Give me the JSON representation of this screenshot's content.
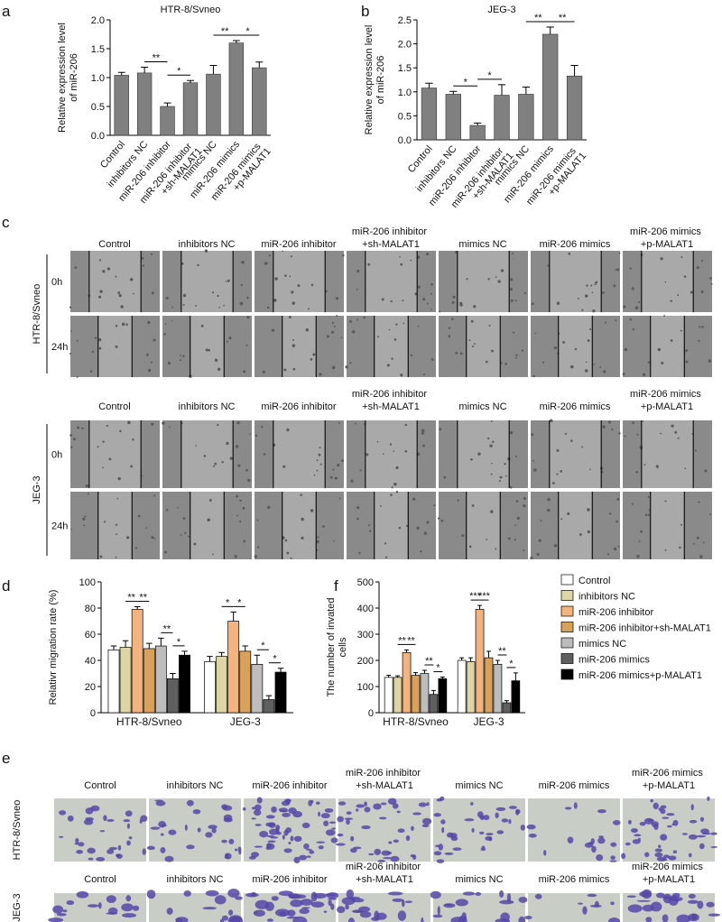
{
  "chart_data": [
    {
      "type": "bar",
      "panel": "a",
      "title": "HTR-8/Svneo",
      "ylabel": [
        "Relative expression level",
        "of miR-206"
      ],
      "categories": [
        "Control",
        "inhibitors NC",
        "miR-206 inhibitor",
        "miR-206 inhibitor +sh-MALAT1",
        "mimics NC",
        "miR-206 mimics",
        "miR-206 mimics +p-MALAT1"
      ],
      "values": [
        1.04,
        1.08,
        0.5,
        0.91,
        1.06,
        1.6,
        1.17
      ],
      "errors": [
        0.05,
        0.1,
        0.06,
        0.04,
        0.15,
        0.04,
        0.1
      ],
      "color": "#808080",
      "ylim": [
        0,
        2.0
      ],
      "yticks": [
        {
          "value": 0,
          "label": "0.0"
        },
        {
          "value": 0.5,
          "label": "0.5"
        },
        {
          "value": 1.0,
          "label": "1.0"
        },
        {
          "value": 1.5,
          "label": "1.5"
        },
        {
          "value": 2.0,
          "label": "2.0"
        }
      ],
      "significance": [
        {
          "categories": [
            "inhibitors NC",
            "miR-206 inhibitor"
          ],
          "label": "**"
        },
        {
          "categories": [
            "miR-206 inhibitor",
            "miR-206 inhibitor +sh-MALAT1"
          ],
          "label": "*"
        },
        {
          "categories": [
            "mimics NC",
            "miR-206 mimics"
          ],
          "label": "**"
        },
        {
          "categories": [
            "miR-206 mimics",
            "miR-206 mimics +p-MALAT1"
          ],
          "label": "*"
        }
      ]
    },
    {
      "type": "bar",
      "panel": "b",
      "title": "JEG-3",
      "ylabel": [
        "Relative expression level",
        "of miR-206"
      ],
      "categories": [
        "Control",
        "inhibitors NC",
        "miR-206 inhibitor",
        "miR-206 inhibitor +sh-MALAT1",
        "mimics NC",
        "miR-206 mimics",
        "miR-206 mimics +p-MALAT1"
      ],
      "values": [
        1.08,
        0.95,
        0.3,
        0.93,
        0.95,
        2.2,
        1.33
      ],
      "errors": [
        0.1,
        0.06,
        0.05,
        0.22,
        0.15,
        0.15,
        0.22
      ],
      "color": "#808080",
      "ylim": [
        0,
        2.5
      ],
      "yticks": [
        {
          "value": 0,
          "label": "0.0"
        },
        {
          "value": 0.5,
          "label": "0.5"
        },
        {
          "value": 1.0,
          "label": "1.0"
        },
        {
          "value": 1.5,
          "label": "1.5"
        },
        {
          "value": 2.0,
          "label": "2.0"
        },
        {
          "value": 2.5,
          "label": "2.5"
        }
      ],
      "significance": [
        {
          "categories": [
            "inhibitors NC",
            "miR-206 inhibitor"
          ],
          "label": "*"
        },
        {
          "categories": [
            "miR-206 inhibitor",
            "miR-206 inhibitor +sh-MALAT1"
          ],
          "label": "*"
        },
        {
          "categories": [
            "mimics NC",
            "miR-206 mimics"
          ],
          "label": "**"
        },
        {
          "categories": [
            "miR-206 mimics",
            "miR-206 mimics +p-MALAT1"
          ],
          "label": "**"
        }
      ]
    },
    {
      "type": "bar",
      "panel": "d",
      "ylabel": [
        "Relativr migration rate (%)"
      ],
      "categories": [
        "HTR-8/Svneo",
        "JEG-3"
      ],
      "series": [
        {
          "name": "Control",
          "color": "#ffffff",
          "values": [
            48,
            39
          ],
          "errors": [
            3,
            4
          ]
        },
        {
          "name": "inhibitors NC",
          "color": "#ddd6a4",
          "values": [
            50,
            43
          ],
          "errors": [
            5,
            3
          ]
        },
        {
          "name": "miR-206 inhibitor",
          "color": "#f4b27c",
          "values": [
            79,
            70
          ],
          "errors": [
            2,
            7
          ]
        },
        {
          "name": "miR-206 inhibitor+sh-MALAT1",
          "color": "#d9a15a",
          "values": [
            49,
            47
          ],
          "errors": [
            4,
            4
          ]
        },
        {
          "name": "mimics NC",
          "color": "#bdbdbd",
          "values": [
            51,
            37
          ],
          "errors": [
            6,
            7
          ]
        },
        {
          "name": "miR-206 mimics",
          "color": "#5f5f5f",
          "values": [
            26,
            10
          ],
          "errors": [
            4,
            3
          ]
        },
        {
          "name": "miR-206 mimics+p-MALAT1",
          "color": "#000000",
          "values": [
            44,
            31
          ],
          "errors": [
            3,
            3
          ]
        }
      ],
      "ylim": [
        0,
        100
      ],
      "yticks": [
        0,
        20,
        40,
        60,
        80,
        100
      ],
      "significance": [
        {
          "category": "HTR-8/Svneo",
          "series": [
            "inhibitors NC",
            "miR-206 inhibitor"
          ],
          "label": "**"
        },
        {
          "category": "HTR-8/Svneo",
          "series": [
            "miR-206 inhibitor",
            "miR-206 inhibitor+sh-MALAT1"
          ],
          "label": "**"
        },
        {
          "category": "HTR-8/Svneo",
          "series": [
            "mimics NC",
            "miR-206 mimics"
          ],
          "label": "**"
        },
        {
          "category": "HTR-8/Svneo",
          "series": [
            "miR-206 mimics",
            "miR-206 mimics+p-MALAT1"
          ],
          "label": "*"
        },
        {
          "category": "JEG-3",
          "series": [
            "inhibitors NC",
            "miR-206 inhibitor"
          ],
          "label": "*"
        },
        {
          "category": "JEG-3",
          "series": [
            "miR-206 inhibitor",
            "miR-206 inhibitor+sh-MALAT1"
          ],
          "label": "*"
        },
        {
          "category": "JEG-3",
          "series": [
            "mimics NC",
            "miR-206 mimics"
          ],
          "label": "*"
        },
        {
          "category": "JEG-3",
          "series": [
            "miR-206 mimics",
            "miR-206 mimics+p-MALAT1"
          ],
          "label": "*"
        }
      ]
    },
    {
      "type": "bar",
      "panel": "f",
      "ylabel": [
        "The number of invated",
        "cells"
      ],
      "categories": [
        "HTR-8/Svneo",
        "JEG-3"
      ],
      "legend": "right",
      "series": [
        {
          "name": "Control",
          "color": "#ffffff",
          "values": [
            135,
            200
          ],
          "errors": [
            8,
            10
          ]
        },
        {
          "name": "inhibitors NC",
          "color": "#ddd6a4",
          "values": [
            135,
            195
          ],
          "errors": [
            6,
            15
          ]
        },
        {
          "name": "miR-206 inhibitor",
          "color": "#f4b27c",
          "values": [
            230,
            395
          ],
          "errors": [
            10,
            15
          ]
        },
        {
          "name": "miR-206 inhibitor+sh-MALAT1",
          "color": "#d9a15a",
          "values": [
            143,
            210
          ],
          "errors": [
            10,
            25
          ]
        },
        {
          "name": "mimics NC",
          "color": "#bdbdbd",
          "values": [
            150,
            185
          ],
          "errors": [
            12,
            15
          ]
        },
        {
          "name": "miR-206 mimics",
          "color": "#5f5f5f",
          "values": [
            70,
            38
          ],
          "errors": [
            15,
            8
          ]
        },
        {
          "name": "miR-206 mimics+p-MALAT1",
          "color": "#000000",
          "values": [
            130,
            122
          ],
          "errors": [
            6,
            30
          ]
        }
      ],
      "ylim": [
        0,
        500
      ],
      "yticks": [
        0,
        100,
        200,
        300,
        400,
        500
      ],
      "significance": [
        {
          "category": "HTR-8/Svneo",
          "series": [
            "inhibitors NC",
            "miR-206 inhibitor"
          ],
          "label": "**"
        },
        {
          "category": "HTR-8/Svneo",
          "series": [
            "miR-206 inhibitor",
            "miR-206 inhibitor+sh-MALAT1"
          ],
          "label": "**"
        },
        {
          "category": "HTR-8/Svneo",
          "series": [
            "mimics NC",
            "miR-206 mimics"
          ],
          "label": "**"
        },
        {
          "category": "HTR-8/Svneo",
          "series": [
            "miR-206 mimics",
            "miR-206 mimics+p-MALAT1"
          ],
          "label": "*"
        },
        {
          "category": "JEG-3",
          "series": [
            "inhibitors NC",
            "miR-206 inhibitor"
          ],
          "label": "***"
        },
        {
          "category": "JEG-3",
          "series": [
            "miR-206 inhibitor",
            "miR-206 inhibitor+sh-MALAT1"
          ],
          "label": "***"
        },
        {
          "category": "JEG-3",
          "series": [
            "mimics NC",
            "miR-206 mimics"
          ],
          "label": "**"
        },
        {
          "category": "JEG-3",
          "series": [
            "miR-206 mimics",
            "miR-206 mimics+p-MALAT1"
          ],
          "label": "*"
        }
      ]
    }
  ],
  "panels": [
    {
      "panel": "c",
      "blocks": [
        {
          "cell_line": "HTR-8/Svneo",
          "rows": [
            "0h",
            "24h"
          ],
          "columns": [
            "Control",
            "inhibitors NC",
            "miR-206 inhibitor",
            "miR-206 inhibitor +sh-MALAT1",
            "mimics NC",
            "miR-206 mimics",
            "miR-206 mimics +p-MALAT1"
          ]
        },
        {
          "cell_line": "JEG-3",
          "rows": [
            "0h",
            "24h"
          ],
          "columns": [
            "Control",
            "inhibitors NC",
            "miR-206 inhibitor",
            "miR-206 inhibitor +sh-MALAT1",
            "mimics NC",
            "miR-206 mimics",
            "miR-206 mimics +p-MALAT1"
          ]
        }
      ]
    },
    {
      "panel": "e",
      "blocks": [
        {
          "cell_line": "HTR-8/Svneo",
          "columns": [
            "Control",
            "inhibitors NC",
            "miR-206 inhibitor",
            "miR-206 inhibitor +sh-MALAT1",
            "mimics NC",
            "miR-206 mimics",
            "miR-206 mimics +p-MALAT1"
          ]
        },
        {
          "cell_line": "JEG-3",
          "columns": [
            "Control",
            "inhibitors NC",
            "miR-206 inhibitor",
            "miR-206 inhibitor +sh-MALAT1",
            "mimics NC",
            "miR-206 mimics",
            "miR-206 mimics +p-MALAT1"
          ]
        }
      ]
    }
  ]
}
